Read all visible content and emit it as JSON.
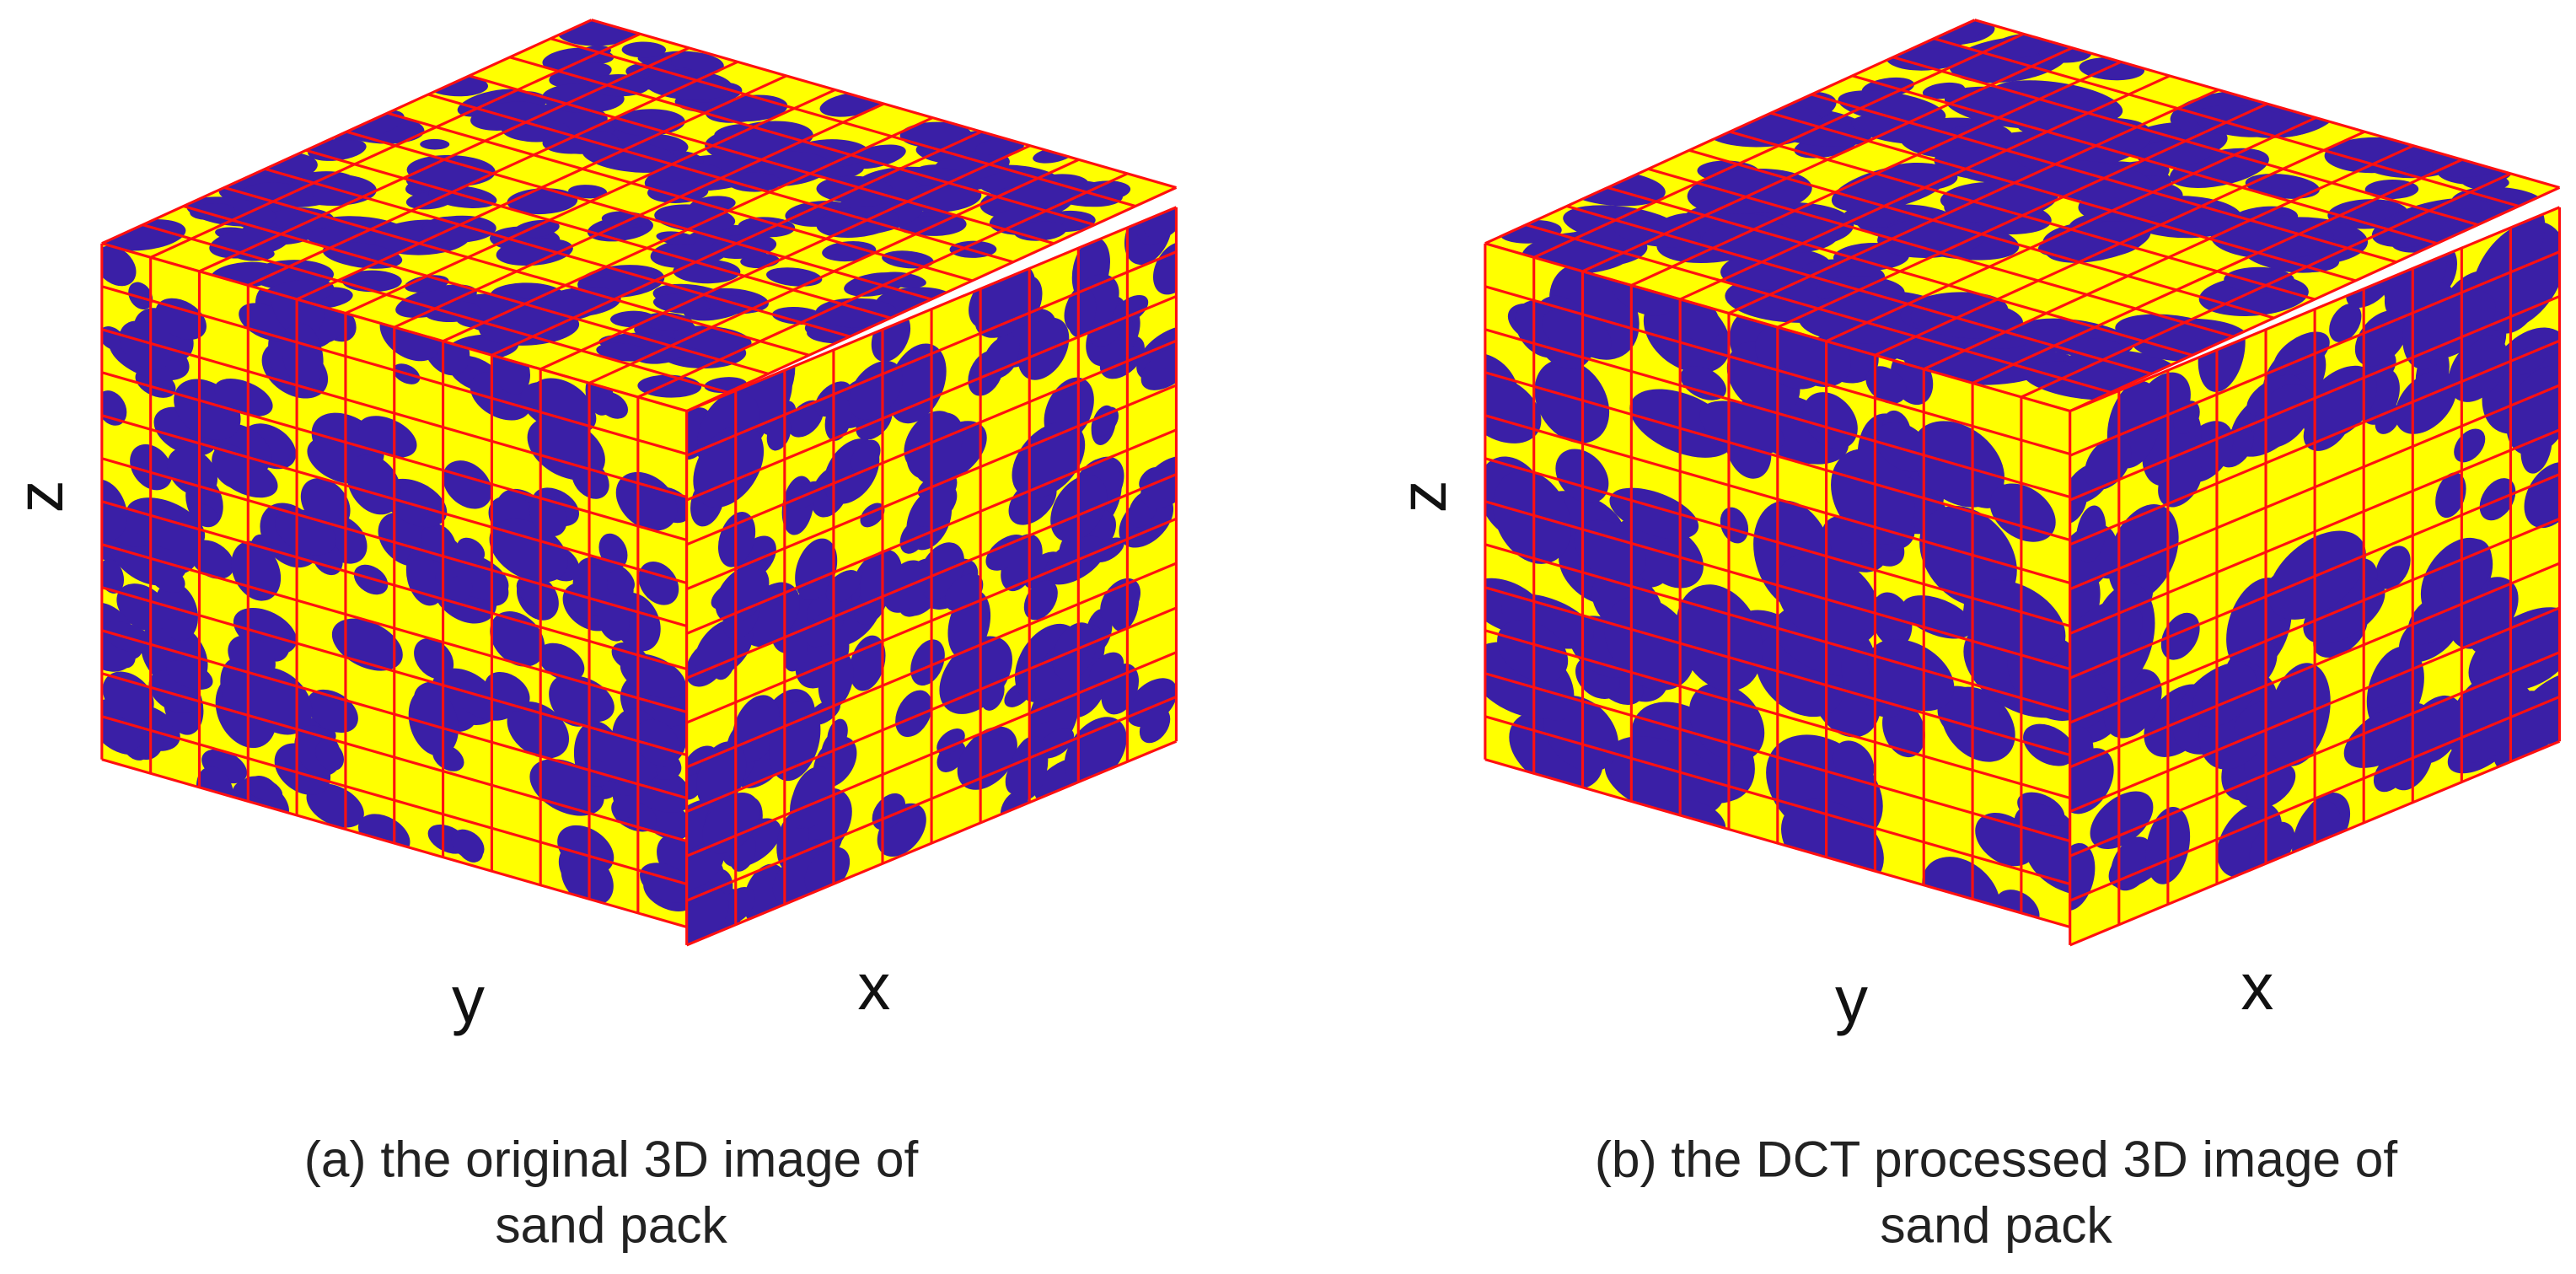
{
  "panels": [
    {
      "axes": {
        "z": "z",
        "y": "y",
        "x": "x"
      },
      "caption": [
        "(a) the original 3D image of",
        "sand pack"
      ]
    },
    {
      "axes": {
        "z": "z",
        "y": "y",
        "x": "x"
      },
      "caption": [
        "(b) the DCT processed 3D image of",
        "sand pack"
      ]
    }
  ]
}
